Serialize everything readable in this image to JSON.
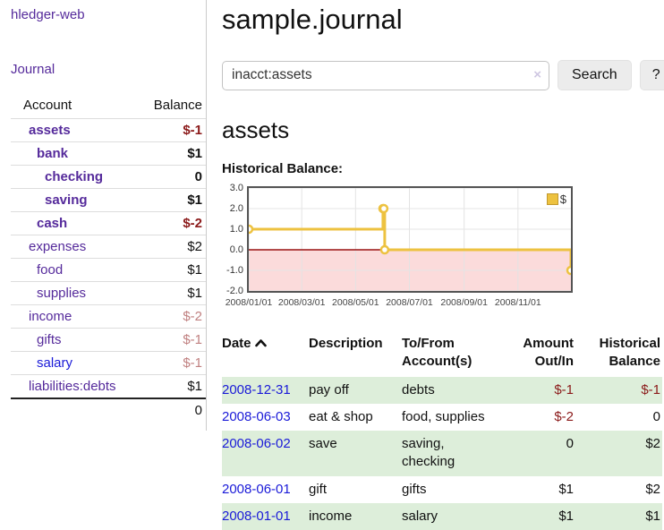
{
  "colors": {
    "link_purple": "#552a9b",
    "link_blue": "#1a1ad8",
    "negative_strong": "#8b1a1a",
    "negative_muted": "#c08080",
    "row_green": "#ddeeda",
    "chart_line": "#edc240",
    "chart_fill_negative": "#fbdbdb",
    "zero_line": "#991111",
    "button_bg": "#ececec",
    "border_gray": "#cccccc"
  },
  "app": {
    "brand": "hledger-web"
  },
  "sidebar": {
    "journal_link": "Journal",
    "accounts_table": {
      "headers": {
        "account": "Account",
        "balance": "Balance"
      },
      "rows": [
        {
          "account": "assets",
          "balance": "$-1",
          "level": 0,
          "strong": true,
          "balance_tone": "negative",
          "link_tone": "visited"
        },
        {
          "account": "bank",
          "balance": "$1",
          "level": 1,
          "strong": true,
          "balance_tone": "normal",
          "link_tone": "visited"
        },
        {
          "account": "checking",
          "balance": "0",
          "level": 2,
          "strong": true,
          "balance_tone": "normal",
          "link_tone": "visited"
        },
        {
          "account": "saving",
          "balance": "$1",
          "level": 2,
          "strong": true,
          "balance_tone": "normal",
          "link_tone": "visited"
        },
        {
          "account": "cash",
          "balance": "$-2",
          "level": 1,
          "strong": true,
          "balance_tone": "negative",
          "link_tone": "visited"
        },
        {
          "account": "expenses",
          "balance": "$2",
          "level": 0,
          "strong": false,
          "balance_tone": "normal",
          "link_tone": "visited"
        },
        {
          "account": "food",
          "balance": "$1",
          "level": 1,
          "strong": false,
          "balance_tone": "normal",
          "link_tone": "visited"
        },
        {
          "account": "supplies",
          "balance": "$1",
          "level": 1,
          "strong": false,
          "balance_tone": "normal",
          "link_tone": "visited"
        },
        {
          "account": "income",
          "balance": "$-2",
          "level": 0,
          "strong": false,
          "balance_tone": "negative-muted",
          "link_tone": "visited"
        },
        {
          "account": "gifts",
          "balance": "$-1",
          "level": 1,
          "strong": false,
          "balance_tone": "negative-muted",
          "link_tone": "visited"
        },
        {
          "account": "salary",
          "balance": "$-1",
          "level": 1,
          "strong": false,
          "balance_tone": "negative-muted",
          "link_tone": "unvisited"
        },
        {
          "account": "liabilities:debts",
          "balance": "$1",
          "level": 0,
          "strong": false,
          "balance_tone": "normal",
          "link_tone": "visited"
        }
      ],
      "total": "0"
    }
  },
  "main": {
    "title": "sample.journal",
    "search": {
      "value": "inacct:assets",
      "clear_icon": "×",
      "search_button": "Search",
      "help_button": "?"
    },
    "account_heading": "assets",
    "chart_title": "Historical Balance:"
  },
  "chart_data": {
    "type": "line",
    "step": true,
    "title": "Historical Balance",
    "series": [
      {
        "name": "$",
        "color": "#edc240",
        "points": [
          {
            "date": "2008-01-01",
            "value": 1
          },
          {
            "date": "2008-06-01",
            "value": 2
          },
          {
            "date": "2008-06-02",
            "value": 2
          },
          {
            "date": "2008-06-03",
            "value": 0
          },
          {
            "date": "2008-12-31",
            "value": -1
          }
        ]
      }
    ],
    "ylim": [
      -2,
      3
    ],
    "yticks": [
      {
        "label": "3.0",
        "value": 3
      },
      {
        "label": "2.0",
        "value": 2
      },
      {
        "label": "1.0",
        "value": 1
      },
      {
        "label": "0.0",
        "value": 0
      },
      {
        "label": "-1.0",
        "value": -1
      },
      {
        "label": "-2.0",
        "value": -2
      }
    ],
    "xticks": [
      {
        "label": "2008/01/01",
        "date": "2008-01-01"
      },
      {
        "label": "2008/03/01",
        "date": "2008-03-01"
      },
      {
        "label": "2008/05/01",
        "date": "2008-05-01"
      },
      {
        "label": "2008/07/01",
        "date": "2008-07-01"
      },
      {
        "label": "2008/09/01",
        "date": "2008-09-01"
      },
      {
        "label": "2008/11/01",
        "date": "2008-11-01"
      }
    ],
    "x_range": [
      "2008-01-01",
      "2008-12-31"
    ],
    "legend": {
      "label": "$",
      "position": "top-right"
    },
    "negative_region_shaded": true,
    "grid": true
  },
  "register": {
    "headers": [
      "Date",
      "Description",
      "To/From Account(s)",
      "Amount Out/In",
      "Historical Balance"
    ],
    "sort": {
      "column": "Date",
      "direction": "asc"
    },
    "rows": [
      {
        "date": "2008-12-31",
        "description": "pay off",
        "accounts": "debts",
        "amount": "$-1",
        "balance": "$-1",
        "amount_tone": "negative",
        "balance_tone": "negative"
      },
      {
        "date": "2008-06-03",
        "description": "eat & shop",
        "accounts": "food, supplies",
        "amount": "$-2",
        "balance": "0",
        "amount_tone": "negative",
        "balance_tone": "normal"
      },
      {
        "date": "2008-06-02",
        "description": "save",
        "accounts": "saving, checking",
        "amount": "0",
        "balance": "$2",
        "amount_tone": "normal",
        "balance_tone": "normal"
      },
      {
        "date": "2008-06-01",
        "description": "gift",
        "accounts": "gifts",
        "amount": "$1",
        "balance": "$2",
        "amount_tone": "normal",
        "balance_tone": "normal"
      },
      {
        "date": "2008-01-01",
        "description": "income",
        "accounts": "salary",
        "amount": "$1",
        "balance": "$1",
        "amount_tone": "normal",
        "balance_tone": "normal"
      }
    ]
  }
}
